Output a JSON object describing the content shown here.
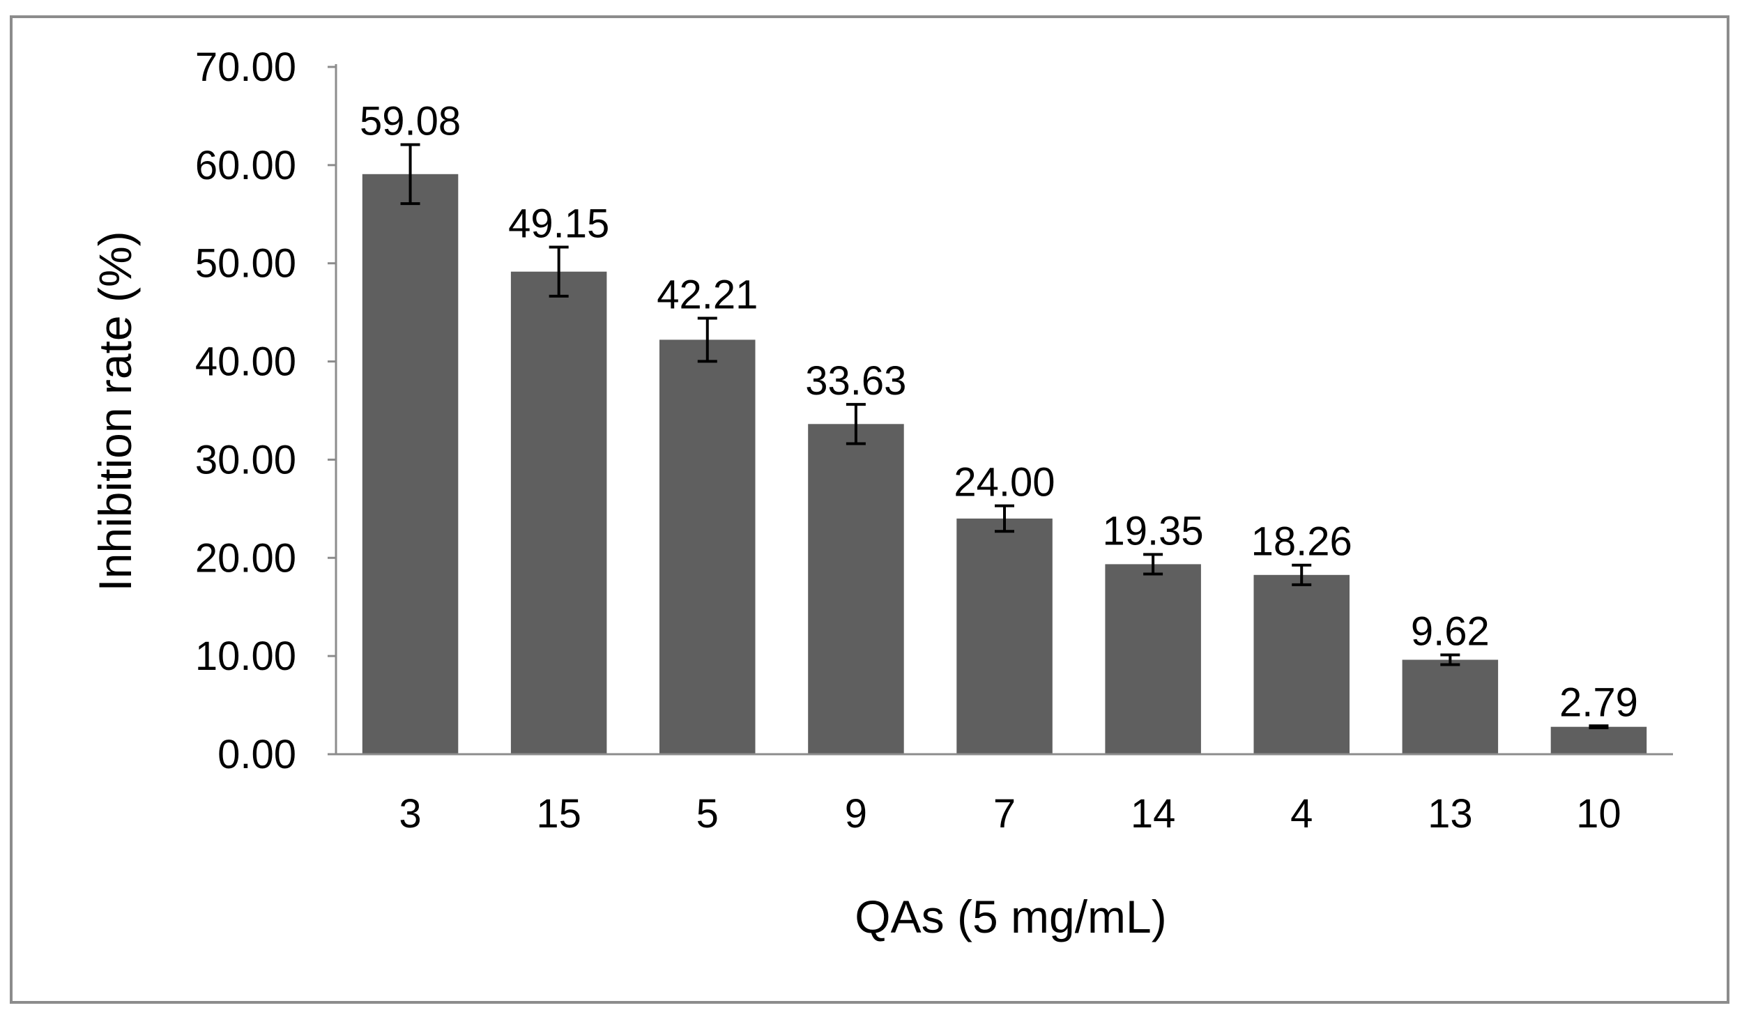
{
  "chart_data": {
    "type": "bar",
    "title": "",
    "xlabel": "QAs (5 mg/mL)",
    "ylabel": "Inhibition rate (%)",
    "categories": [
      "3",
      "15",
      "5",
      "9",
      "7",
      "14",
      "4",
      "13",
      "10"
    ],
    "values": [
      59.08,
      49.15,
      42.21,
      33.63,
      24.0,
      19.35,
      18.26,
      9.62,
      2.79
    ],
    "value_labels": [
      "59.08",
      "49.15",
      "42.21",
      "33.63",
      "24.00",
      "19.35",
      "18.26",
      "9.62",
      "2.79"
    ],
    "error": [
      3.0,
      2.5,
      2.2,
      2.0,
      1.3,
      1.0,
      1.0,
      0.5,
      0.1
    ],
    "ylim": [
      0,
      70
    ],
    "yticks": [
      0,
      10,
      20,
      30,
      40,
      50,
      60,
      70
    ],
    "ytick_labels": [
      "0.00",
      "10.00",
      "20.00",
      "30.00",
      "40.00",
      "50.00",
      "60.00",
      "70.00"
    ],
    "grid": false,
    "legend": "none",
    "bar_color": "#5f5f5f",
    "error_bar_color": "#000000",
    "axis_color": "#8c8c8c"
  }
}
